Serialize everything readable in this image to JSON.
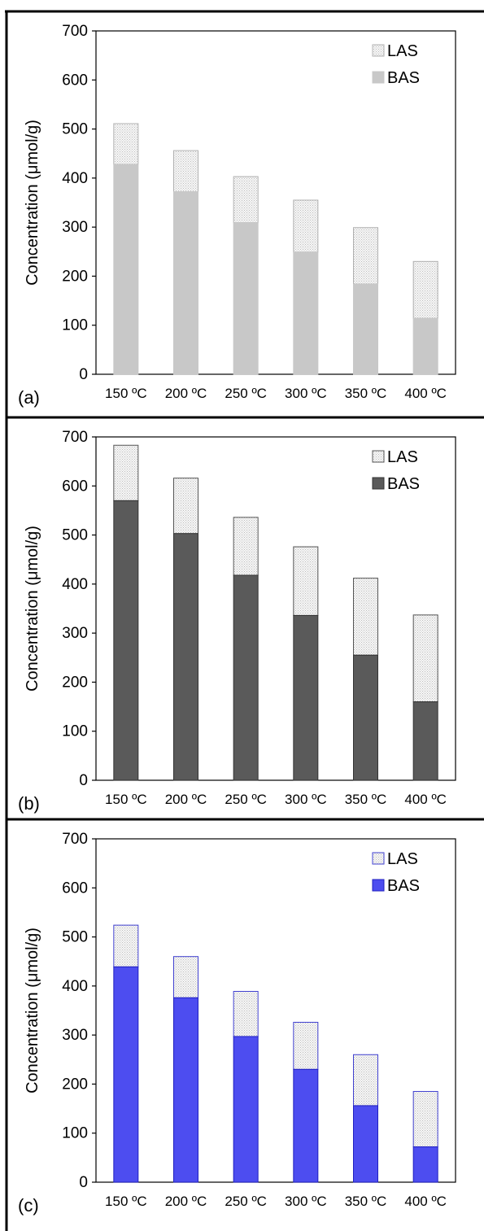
{
  "chart_data": [
    {
      "type": "bar",
      "panel_label": "(a)",
      "stacked": true,
      "ylabel": "Concentration (μmol/g)",
      "ylim": [
        0,
        700
      ],
      "yticks": [
        0,
        100,
        200,
        300,
        400,
        500,
        600,
        700
      ],
      "categories": [
        "150 ºC",
        "200 ºC",
        "250 ºC",
        "300 ºC",
        "350 ºC",
        "400 ºC"
      ],
      "series": [
        {
          "name": "BAS",
          "values": [
            428,
            372,
            309,
            249,
            184,
            114
          ],
          "color": "#c8c8c8",
          "border": "#c8c8c8"
        },
        {
          "name": "LAS",
          "values": [
            83,
            84,
            94,
            106,
            115,
            116
          ],
          "color": "#f2f2f2",
          "border": "#b0b0b0"
        }
      ],
      "legend": "top-right",
      "grid": false
    },
    {
      "type": "bar",
      "panel_label": "(b)",
      "stacked": true,
      "ylabel": "Concentration (μmol/g)",
      "ylim": [
        0,
        700
      ],
      "yticks": [
        0,
        100,
        200,
        300,
        400,
        500,
        600,
        700
      ],
      "categories": [
        "150 ºC",
        "200 ºC",
        "250 ºC",
        "300 ºC",
        "350 ºC",
        "400 ºC"
      ],
      "series": [
        {
          "name": "BAS",
          "values": [
            570,
            503,
            418,
            336,
            255,
            160
          ],
          "color": "#5a5a5a",
          "border": "#333333"
        },
        {
          "name": "LAS",
          "values": [
            113,
            113,
            118,
            140,
            157,
            177
          ],
          "color": "#ececec",
          "border": "#555555"
        }
      ],
      "legend": "top-right",
      "grid": false
    },
    {
      "type": "bar",
      "panel_label": "(c)",
      "stacked": true,
      "ylabel": "Concentration (μmol/g)",
      "ylim": [
        0,
        700
      ],
      "yticks": [
        0,
        100,
        200,
        300,
        400,
        500,
        600,
        700
      ],
      "categories": [
        "150 ºC",
        "200 ºC",
        "250 ºC",
        "300 ºC",
        "350 ºC",
        "400 ºC"
      ],
      "series": [
        {
          "name": "BAS",
          "values": [
            439,
            376,
            297,
            230,
            156,
            72
          ],
          "color": "#4d4df0",
          "border": "#2020c0"
        },
        {
          "name": "LAS",
          "values": [
            85,
            84,
            92,
            96,
            104,
            113
          ],
          "color": "#e8e8f8",
          "border": "#4040d0"
        }
      ],
      "legend": "top-right",
      "grid": false
    }
  ]
}
